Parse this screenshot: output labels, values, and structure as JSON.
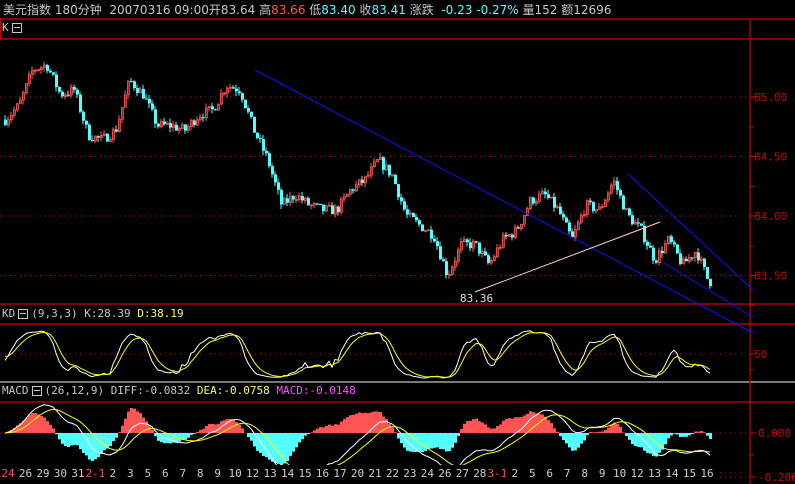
{
  "header": {
    "name": "美元指数",
    "period": "180分钟",
    "datetime": "20070316 09:00",
    "open_label": "开",
    "open": "83.64",
    "high_label": "高",
    "high": "83.66",
    "low_label": "低",
    "low": "83.40",
    "close_label": "收",
    "close": "83.41",
    "change_label": "涨跌",
    "change": "-0.23",
    "change_pct": "-0.27%",
    "volume_label": "量",
    "volume": "152",
    "amount_label": "额",
    "amount": "12696"
  },
  "k_panel": {
    "label": "K",
    "collapse_icon": "minus-box-icon",
    "low_marker": "83.36"
  },
  "kd_panel": {
    "label": "KD",
    "params": "(9,3,3)",
    "k": "K:28.39",
    "d": "D:38.19"
  },
  "macd_panel": {
    "label": "MACD",
    "params": "(26,12,9)",
    "diff": "DIFF:-0.0832",
    "dea": "DEA:-0.0758",
    "macd": "MACD:-0.0148"
  },
  "colors": {
    "up": "#ff5454",
    "down": "#54ffff",
    "axis": "#cc0000",
    "trendline": "#1010ff",
    "k_line": "#ffffff",
    "d_line": "#ffff00",
    "macd_label": "#ff54ff"
  },
  "chart_data": {
    "type": "candlestick",
    "y_ticks": [
      "85.00",
      "84.50",
      "84.00",
      "83.50"
    ],
    "ylim": [
      83.3,
      85.4
    ],
    "kd_ticks": [
      "50"
    ],
    "macd_ticks": [
      "0.000",
      "-0.200"
    ],
    "grid": "dotted horizontal",
    "close_path": [
      84.81,
      84.93,
      85.23,
      85.27,
      85.02,
      85.06,
      84.68,
      84.64,
      84.72,
      85.14,
      85.02,
      84.76,
      84.76,
      84.72,
      84.85,
      84.89,
      85.1,
      85.06,
      84.72,
      84.47,
      84.09,
      84.18,
      84.09,
      84.05,
      84.05,
      84.22,
      84.3,
      84.47,
      84.34,
      84.01,
      83.92,
      83.84,
      83.5,
      83.76,
      83.76,
      83.59,
      83.8,
      83.88,
      84.13,
      84.18,
      84.05,
      83.8,
      84.09,
      84.05,
      84.3,
      84.01,
      83.88,
      83.63,
      83.8,
      83.59,
      83.71,
      83.41
    ],
    "x_labels": [
      {
        "t": "24",
        "red": true
      },
      {
        "t": "26"
      },
      {
        "t": "29"
      },
      {
        "t": "30"
      },
      {
        "t": "31"
      },
      {
        "t": "2-1",
        "red": true
      },
      {
        "t": "2"
      },
      {
        "t": "3"
      },
      {
        "t": "5"
      },
      {
        "t": "6"
      },
      {
        "t": "7"
      },
      {
        "t": "8"
      },
      {
        "t": "9"
      },
      {
        "t": "10"
      },
      {
        "t": "12"
      },
      {
        "t": "13"
      },
      {
        "t": "14"
      },
      {
        "t": "15"
      },
      {
        "t": "16"
      },
      {
        "t": "17"
      },
      {
        "t": "20"
      },
      {
        "t": "21"
      },
      {
        "t": "22"
      },
      {
        "t": "23"
      },
      {
        "t": "24"
      },
      {
        "t": "26"
      },
      {
        "t": "27"
      },
      {
        "t": "28"
      },
      {
        "t": "3-1",
        "red": true
      },
      {
        "t": "2"
      },
      {
        "t": "5"
      },
      {
        "t": "6"
      },
      {
        "t": "7"
      },
      {
        "t": "8"
      },
      {
        "t": "9"
      },
      {
        "t": "10"
      },
      {
        "t": "12"
      },
      {
        "t": "13"
      },
      {
        "t": "14"
      },
      {
        "t": "15"
      },
      {
        "t": "16"
      }
    ]
  }
}
